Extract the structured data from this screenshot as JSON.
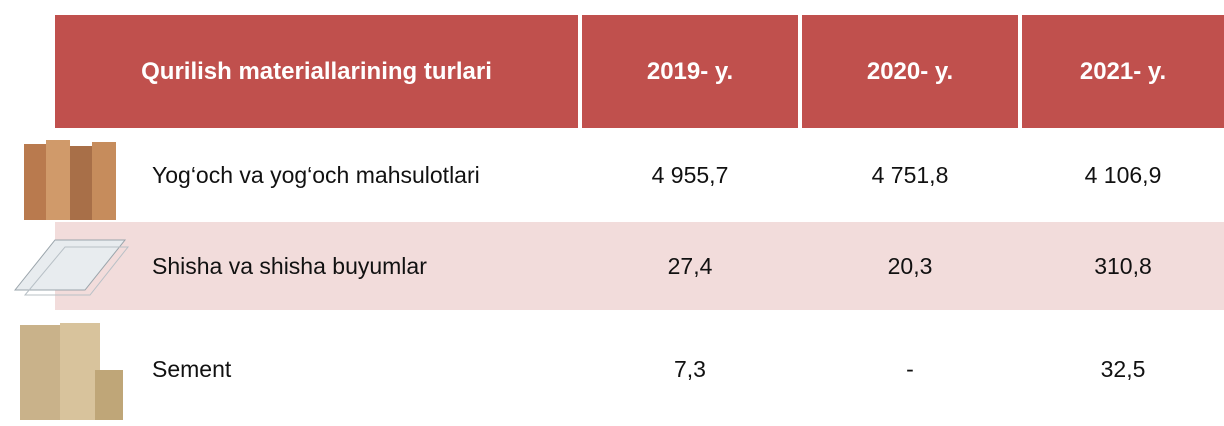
{
  "table": {
    "header": [
      "Qurilish materiallarining turlari",
      "2019- y.",
      "2020- y.",
      "2021- y."
    ],
    "rows": [
      [
        "Yog‘och va yog‘och mahsulotlari",
        "4 955,7",
        "4 751,8",
        "4 106,9"
      ],
      [
        "Shisha va shisha buyumlar",
        "27,4",
        "20,3",
        "310,8"
      ],
      [
        "Sement",
        "7,3",
        "-",
        "32,5"
      ]
    ]
  }
}
